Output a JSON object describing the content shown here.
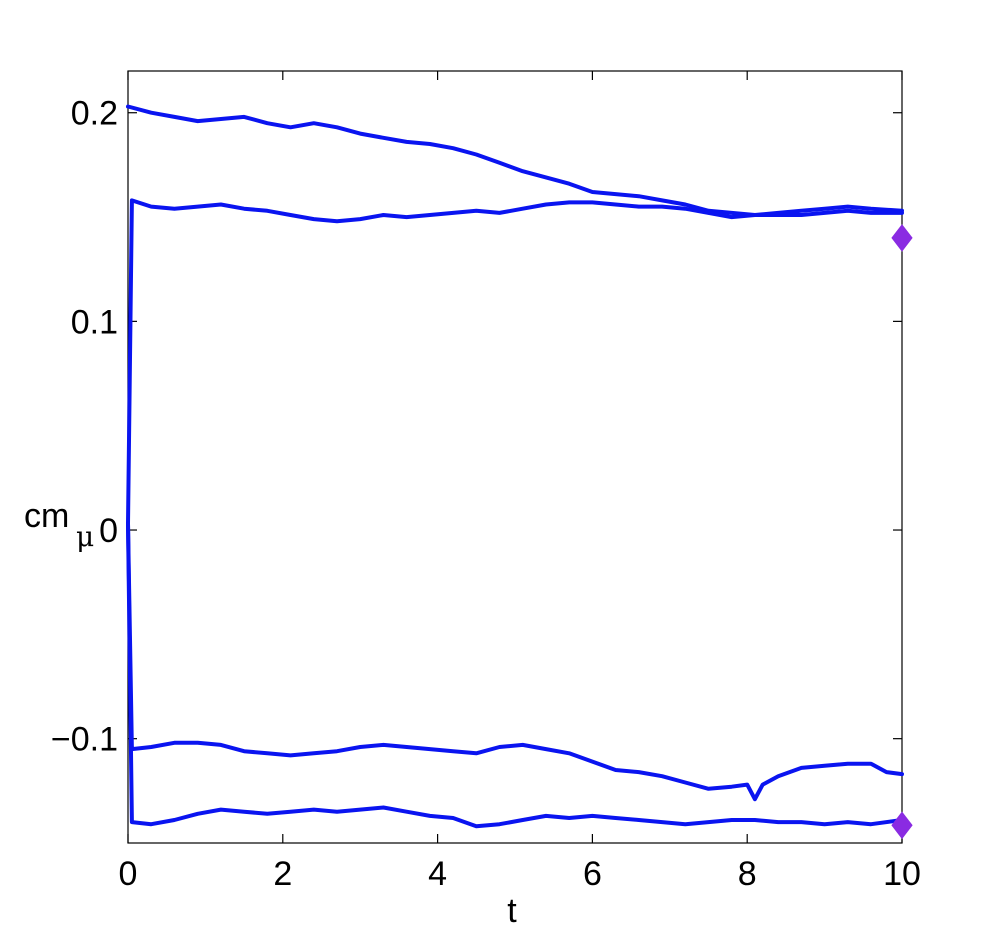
{
  "chart_data": {
    "type": "line",
    "title": "",
    "xlabel": "t",
    "ylabel": "cm",
    "ylabel_subscript": "μ",
    "xlim": [
      0,
      10
    ],
    "ylim": [
      -0.15,
      0.22
    ],
    "xticks": [
      0,
      2,
      4,
      6,
      8,
      10
    ],
    "xtick_labels": [
      "0",
      "2",
      "4",
      "6",
      "8",
      "10"
    ],
    "yticks": [
      -0.1,
      0,
      0.1,
      0.2
    ],
    "ytick_labels": [
      "−0.1",
      "0",
      "0.1",
      "0.2"
    ],
    "grid": false,
    "line_color": "#0a14f0",
    "marker_color": "#8a2be2",
    "series": [
      {
        "x": [
          0,
          0.3,
          0.6,
          0.9,
          1.2,
          1.5,
          1.8,
          2.1,
          2.4,
          2.7,
          3.0,
          3.3,
          3.6,
          3.9,
          4.2,
          4.5,
          4.8,
          5.1,
          5.4,
          5.7,
          6.0,
          6.3,
          6.6,
          6.9,
          7.2,
          7.5,
          7.8,
          8.1,
          8.4,
          8.7,
          9.0,
          9.3,
          9.6,
          10.0
        ],
        "y": [
          0.203,
          0.2,
          0.198,
          0.196,
          0.197,
          0.198,
          0.195,
          0.193,
          0.195,
          0.193,
          0.19,
          0.188,
          0.186,
          0.185,
          0.183,
          0.18,
          0.176,
          0.172,
          0.169,
          0.166,
          0.162,
          0.161,
          0.16,
          0.158,
          0.156,
          0.153,
          0.152,
          0.151,
          0.151,
          0.151,
          0.152,
          0.153,
          0.152,
          0.152
        ]
      },
      {
        "x": [
          0,
          0.05,
          0.3,
          0.6,
          0.9,
          1.2,
          1.5,
          1.8,
          2.1,
          2.4,
          2.7,
          3.0,
          3.3,
          3.6,
          3.9,
          4.2,
          4.5,
          4.8,
          5.1,
          5.4,
          5.7,
          6.0,
          6.3,
          6.6,
          6.9,
          7.2,
          7.5,
          7.8,
          8.1,
          8.4,
          8.7,
          9.0,
          9.3,
          9.6,
          10.0
        ],
        "y": [
          0.003,
          0.158,
          0.155,
          0.154,
          0.155,
          0.156,
          0.154,
          0.153,
          0.151,
          0.149,
          0.148,
          0.149,
          0.151,
          0.15,
          0.151,
          0.152,
          0.153,
          0.152,
          0.154,
          0.156,
          0.157,
          0.157,
          0.156,
          0.155,
          0.155,
          0.154,
          0.152,
          0.15,
          0.151,
          0.152,
          0.153,
          0.154,
          0.155,
          0.154,
          0.153
        ]
      },
      {
        "x": [
          0,
          0.05,
          0.3,
          0.6,
          0.9,
          1.2,
          1.5,
          1.8,
          2.1,
          2.4,
          2.7,
          3.0,
          3.3,
          3.6,
          3.9,
          4.2,
          4.5,
          4.8,
          5.1,
          5.4,
          5.7,
          6.0,
          6.3,
          6.6,
          6.9,
          7.2,
          7.5,
          7.8,
          8.0,
          8.1,
          8.2,
          8.4,
          8.7,
          9.0,
          9.3,
          9.6,
          9.8,
          10.0
        ],
        "y": [
          0.003,
          -0.105,
          -0.104,
          -0.102,
          -0.102,
          -0.103,
          -0.106,
          -0.107,
          -0.108,
          -0.107,
          -0.106,
          -0.104,
          -0.103,
          -0.104,
          -0.105,
          -0.106,
          -0.107,
          -0.104,
          -0.103,
          -0.105,
          -0.107,
          -0.111,
          -0.115,
          -0.116,
          -0.118,
          -0.121,
          -0.124,
          -0.123,
          -0.122,
          -0.129,
          -0.122,
          -0.118,
          -0.114,
          -0.113,
          -0.112,
          -0.112,
          -0.116,
          -0.117
        ]
      },
      {
        "x": [
          0,
          0.05,
          0.3,
          0.6,
          0.9,
          1.2,
          1.5,
          1.8,
          2.1,
          2.4,
          2.7,
          3.0,
          3.3,
          3.6,
          3.9,
          4.2,
          4.5,
          4.8,
          5.1,
          5.4,
          5.7,
          6.0,
          6.3,
          6.6,
          6.9,
          7.2,
          7.5,
          7.8,
          8.1,
          8.4,
          8.7,
          9.0,
          9.3,
          9.6,
          10.0
        ],
        "y": [
          0.003,
          -0.14,
          -0.141,
          -0.139,
          -0.136,
          -0.134,
          -0.135,
          -0.136,
          -0.135,
          -0.134,
          -0.135,
          -0.134,
          -0.133,
          -0.135,
          -0.137,
          -0.138,
          -0.142,
          -0.141,
          -0.139,
          -0.137,
          -0.138,
          -0.137,
          -0.138,
          -0.139,
          -0.14,
          -0.141,
          -0.14,
          -0.139,
          -0.139,
          -0.14,
          -0.14,
          -0.141,
          -0.14,
          -0.141,
          -0.139
        ]
      }
    ],
    "markers": [
      {
        "shape": "diamond",
        "x": 10,
        "y": 0.14
      },
      {
        "shape": "diamond",
        "x": 10,
        "y": -0.1415
      }
    ]
  }
}
